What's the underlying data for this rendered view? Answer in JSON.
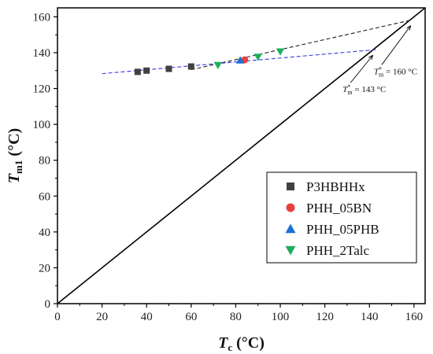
{
  "chart_data": {
    "type": "scatter",
    "title": "",
    "xlabel": {
      "main": "T",
      "sub": "c",
      "unit": " (°C)"
    },
    "ylabel": {
      "main": "T",
      "sub": "m1",
      "unit": " (°C)"
    },
    "xlim": [
      0,
      165
    ],
    "ylim": [
      0,
      165
    ],
    "xticks": [
      0,
      20,
      40,
      60,
      80,
      100,
      120,
      140,
      160
    ],
    "yticks": [
      0,
      20,
      40,
      60,
      80,
      100,
      120,
      140,
      160
    ],
    "grid": false,
    "legend_position": "lower-right",
    "series": [
      {
        "name": "P3HBHHx",
        "marker": "square",
        "color": "#404040",
        "x": [
          36,
          40,
          50,
          60
        ],
        "y": [
          129.3,
          130,
          131,
          132.3
        ]
      },
      {
        "name": "PHH_05BN",
        "marker": "circle",
        "color": "#e8403c",
        "x": [
          84
        ],
        "y": [
          136
        ]
      },
      {
        "name": "PHH_05PHB",
        "marker": "triangle-up",
        "color": "#1f6fd6",
        "x": [
          82
        ],
        "y": [
          135.8
        ]
      },
      {
        "name": "PHH_2Talc",
        "marker": "triangle-down",
        "color": "#1fae5a",
        "x": [
          72,
          90,
          100
        ],
        "y": [
          133,
          137.6,
          140.6
        ]
      }
    ],
    "reference_line": {
      "label": "Tm1 = Tc",
      "x": [
        0,
        165
      ],
      "y": [
        0,
        165
      ],
      "color": "#000000"
    },
    "fit_lines": [
      {
        "color": "#222222",
        "style": "dashed",
        "x": [
          60,
          158
        ],
        "y": [
          130.5,
          158
        ]
      },
      {
        "color": "#3a3ae0",
        "style": "dashed",
        "x": [
          20,
          143
        ],
        "y": [
          128.3,
          141.7
        ]
      }
    ],
    "annotations": [
      {
        "main": "T",
        "sup": "*",
        "sub": "m",
        "value": "= 160 °C",
        "text_x": 142,
        "text_y": 128,
        "target_x": 158.5,
        "target_y": 155
      },
      {
        "main": "T",
        "sup": "*",
        "sub": "m",
        "value": "= 143 °C",
        "text_x": 128,
        "text_y": 118,
        "target_x": 141.5,
        "target_y": 138.5
      }
    ]
  }
}
